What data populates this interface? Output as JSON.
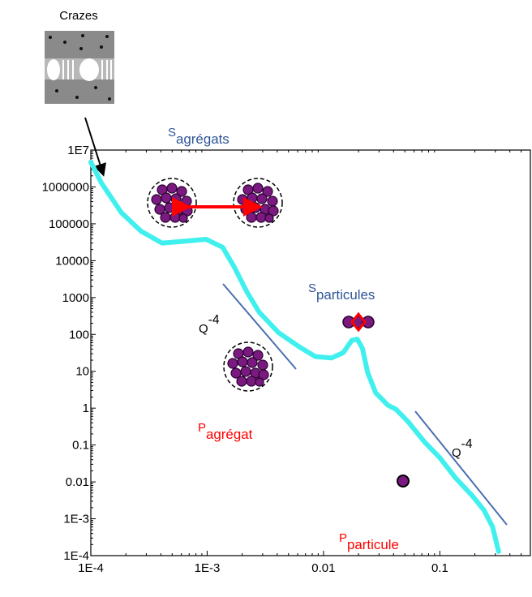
{
  "chart_data": {
    "type": "line",
    "xscale": "log",
    "yscale": "log",
    "x": [
      0.0001,
      0.000123,
      0.000183,
      0.00027,
      0.00041,
      0.00066,
      0.00098,
      0.00136,
      0.00172,
      0.0022,
      0.0028,
      0.0041,
      0.0062,
      0.0085,
      0.0117,
      0.0148,
      0.0175,
      0.0195,
      0.0216,
      0.024,
      0.0281,
      0.0358,
      0.042,
      0.053,
      0.074,
      0.1,
      0.137,
      0.19,
      0.24,
      0.284,
      0.32
    ],
    "values": [
      4700000,
      1300000,
      200000,
      63000,
      30000,
      34000,
      38000,
      23000,
      6500,
      1400,
      400,
      112,
      46,
      25,
      23,
      32,
      69,
      75,
      42,
      9,
      2.6,
      1.2,
      0.93,
      0.44,
      0.12,
      0.045,
      0.0126,
      0.0042,
      0.0017,
      0.0006,
      0.00013
    ],
    "color": "#40f0ee",
    "xlim": [
      0.0001,
      0.6
    ],
    "ylim": [
      0.0001,
      10000000
    ],
    "xticks": [
      {
        "value": 0.0001,
        "label": "1E-4"
      },
      {
        "value": 0.001,
        "label": "1E-3"
      },
      0.01,
      0.1
    ],
    "yticks": [
      {
        "value": 10000000,
        "label": "1E7"
      },
      1000000,
      100000,
      10000,
      1000,
      100,
      10,
      1,
      0.1,
      0.01,
      {
        "value": 0.001,
        "label": "1E-3"
      },
      {
        "value": 0.0001,
        "label": "1E-4"
      }
    ],
    "annotations": [
      {
        "text": "Crazes",
        "color": "#000000"
      },
      {
        "text": "S",
        "sub": "agrégats",
        "color": "#2e5596"
      },
      {
        "text": "S",
        "sub": "particules",
        "color": "#2e5596"
      },
      {
        "text": "P",
        "sub": "agrégat",
        "color": "#ff0000"
      },
      {
        "text": "P",
        "sub": "particule",
        "color": "#ff0000"
      },
      {
        "text": "Q",
        "sup": "-4",
        "color": "#000000"
      },
      {
        "text": "Q",
        "sup": "-4",
        "color": "#000000"
      }
    ]
  }
}
